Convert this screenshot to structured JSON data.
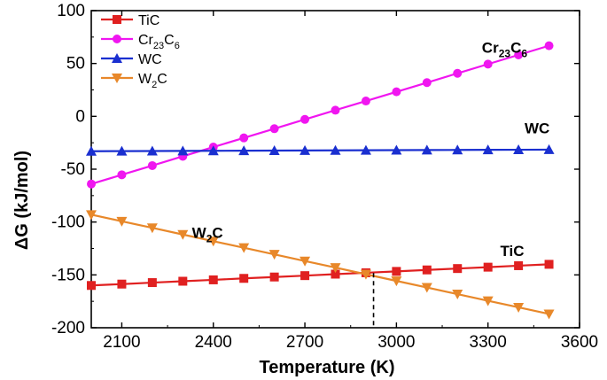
{
  "chart_data": {
    "type": "line",
    "xlabel": "Temperature (K)",
    "ylabel": "ΔG (kJ/mol)",
    "xlim": [
      2000,
      3600
    ],
    "ylim": [
      -200,
      100
    ],
    "xticks": [
      2100,
      2400,
      2700,
      3000,
      3300,
      3600
    ],
    "yticks": [
      100,
      50,
      0,
      -50,
      -100,
      -150,
      -200
    ],
    "x": [
      2000,
      2100,
      2200,
      2300,
      2400,
      2500,
      2600,
      2700,
      2800,
      2900,
      3000,
      3100,
      3200,
      3300,
      3400,
      3500
    ],
    "series": [
      {
        "name": "TiC",
        "html_name": "TiC",
        "color": "#e02020",
        "marker": "square",
        "values": [
          -160.0,
          -158.7,
          -157.3,
          -156.0,
          -154.7,
          -153.3,
          -152.0,
          -150.7,
          -149.3,
          -148.0,
          -146.7,
          -145.3,
          -144.0,
          -142.7,
          -141.3,
          -140.0
        ]
      },
      {
        "name": "Cr23C6",
        "html_name": "Cr<tspan dy='5' font-size='11'>23</tspan><tspan dy='-5'>C</tspan><tspan dy='5' font-size='11'>6</tspan>",
        "color": "#f016f0",
        "marker": "circle",
        "values": [
          -64.0,
          -55.3,
          -46.6,
          -37.8,
          -29.1,
          -20.4,
          -11.7,
          -2.9,
          5.8,
          14.5,
          23.2,
          31.9,
          40.7,
          49.4,
          58.1,
          66.8
        ]
      },
      {
        "name": "WC",
        "html_name": "WC",
        "color": "#1a2fd0",
        "marker": "triangle-up",
        "values": [
          -33.0,
          -32.9,
          -32.8,
          -32.7,
          -32.6,
          -32.5,
          -32.4,
          -32.3,
          -32.2,
          -32.1,
          -32.0,
          -31.9,
          -31.8,
          -31.7,
          -31.6,
          -31.5
        ]
      },
      {
        "name": "W2C",
        "html_name": "W<tspan dy='5' font-size='11'>2</tspan><tspan dy='-5'>C</tspan>",
        "color": "#e8882a",
        "marker": "triangle-down",
        "values": [
          -93.0,
          -99.3,
          -105.5,
          -111.8,
          -118.1,
          -124.3,
          -130.6,
          -136.9,
          -143.1,
          -149.4,
          -155.7,
          -161.9,
          -168.2,
          -174.5,
          -180.7,
          -187.0
        ]
      }
    ],
    "annotations": [
      {
        "text": "Cr23C6",
        "html": "Cr<tspan dy='5' font-size='12'>23</tspan><tspan dy='-5'>C</tspan><tspan dy='5' font-size='12'>6</tspan>",
        "x": 3280,
        "y": 60
      },
      {
        "text": "WC",
        "html": "WC",
        "x": 3420,
        "y": -16
      },
      {
        "text": "W2C",
        "html": "W<tspan dy='5' font-size='12'>2</tspan><tspan dy='-5'>C</tspan>",
        "x": 2330,
        "y": -115
      },
      {
        "text": "TiC",
        "html": "TiC",
        "x": 3340,
        "y": -132
      }
    ],
    "crossover_x": 2925,
    "legend_position": "top-left",
    "grid": false
  }
}
